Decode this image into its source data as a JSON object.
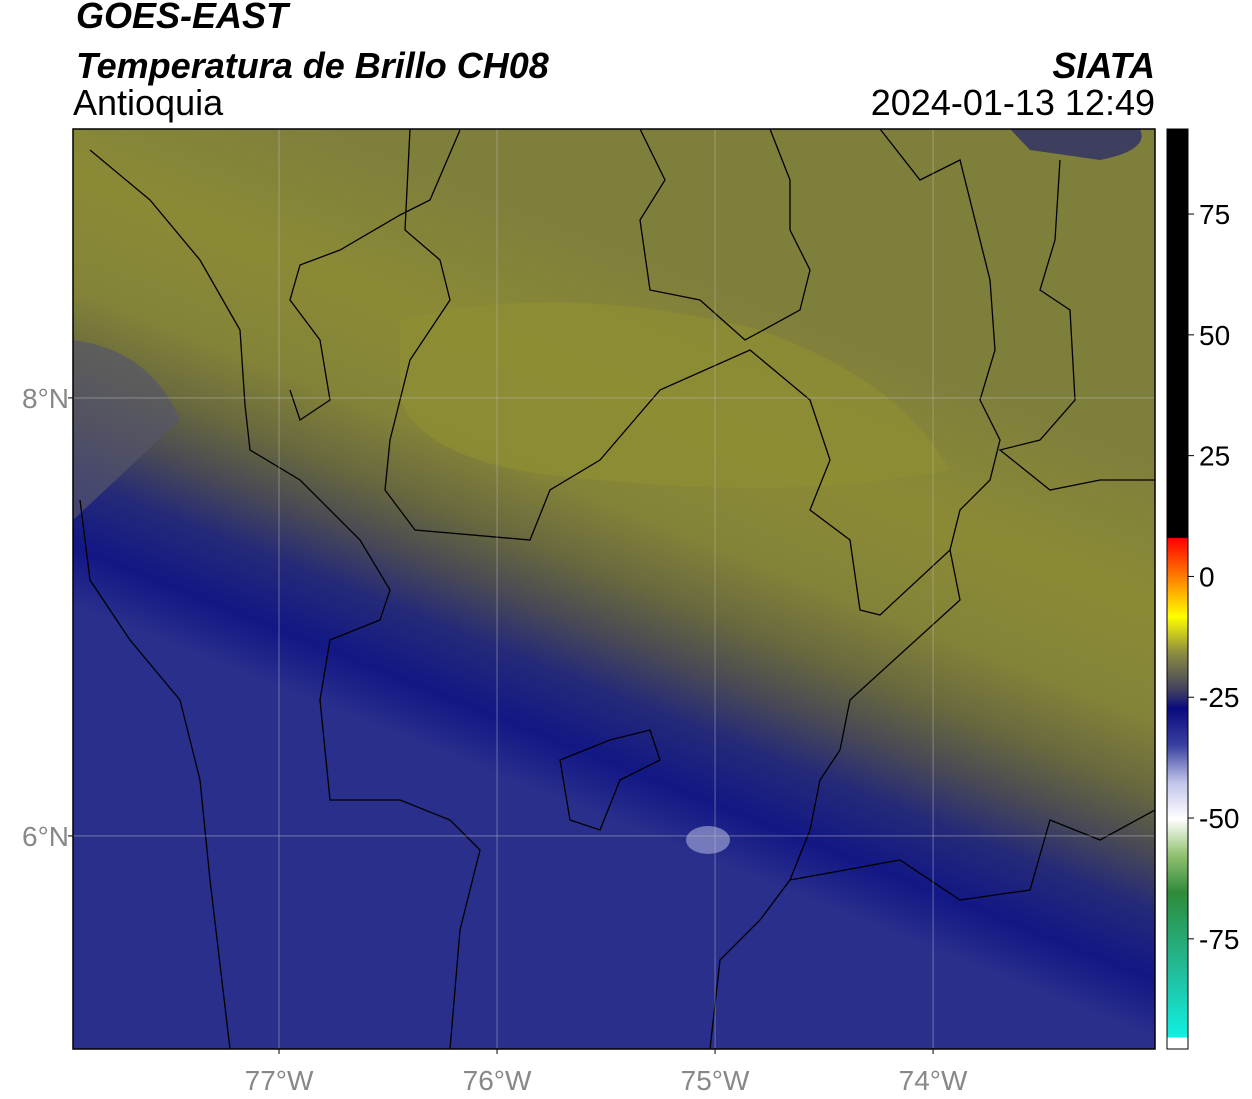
{
  "header": {
    "title": "GOES-EAST",
    "subtitle": "Temperatura de Brillo CH08",
    "region": "Antioquia",
    "source": "SIATA",
    "datetime": "2024-01-13 12:49"
  },
  "map": {
    "xlim": [
      -77.945,
      -72.982
    ],
    "ylim": [
      5.027,
      9.228
    ],
    "xticks": [
      {
        "value": -77,
        "label": "77°W"
      },
      {
        "value": -76,
        "label": "76°W"
      },
      {
        "value": -75,
        "label": "75°W"
      },
      {
        "value": -74,
        "label": "74°W"
      }
    ],
    "yticks": [
      {
        "value": 6,
        "label": "6°N"
      },
      {
        "value": 8,
        "label": "8°N"
      }
    ],
    "grid": true
  },
  "colorbar": {
    "lim": [
      -97.8,
      92.6
    ],
    "ticks": [
      75,
      50,
      25,
      0,
      -25,
      -50,
      -75
    ]
  }
}
